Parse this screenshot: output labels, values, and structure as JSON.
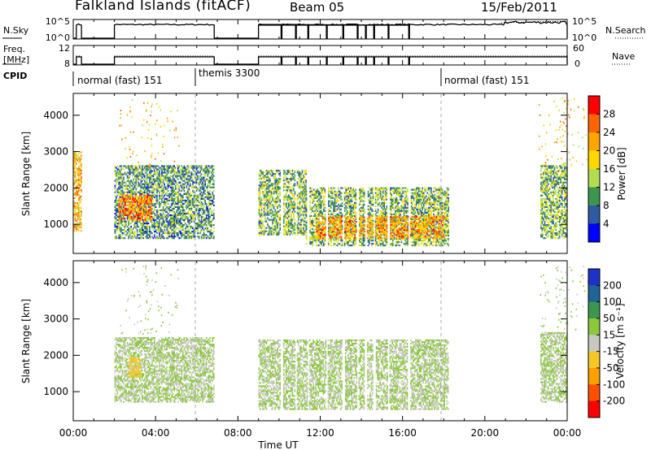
{
  "header": {
    "station": "Falkland Islands (fitACF)",
    "beam": "Beam 05",
    "date": "15/Feb/2011"
  },
  "noise_panel": {
    "left_label": "N.Sky",
    "left_ticks": [
      "10^5",
      "10^0"
    ],
    "right_label": "N.Search",
    "right_ticks": [
      "10^5",
      "10^0"
    ]
  },
  "freq_panel": {
    "left_label_line1": "Freq.",
    "left_label_line2": "[MHz]",
    "left_ticks": [
      "12",
      "8"
    ],
    "right_label": "Nave",
    "right_ticks": [
      "60",
      "0"
    ]
  },
  "cpid": {
    "label": "CPID",
    "segments": [
      {
        "text": "normal (fast) 151",
        "start_hour": 0.0
      },
      {
        "text": "themis 3300",
        "start_hour": 6.0
      },
      {
        "text": "normal (fast) 151",
        "start_hour": 18.0
      }
    ]
  },
  "power_panel": {
    "ylabel": "Slant Range [km]",
    "cbar_label": "Power [dB]",
    "cbar_ticks": [
      "28",
      "24",
      "20",
      "16",
      "12",
      "8",
      "4"
    ],
    "cbar_colors": [
      "#ff0000",
      "#ff6400",
      "#ffa500",
      "#ffd700",
      "#b4dc50",
      "#3c9650",
      "#2d5aa0",
      "#0000ff"
    ]
  },
  "velocity_panel": {
    "ylabel": "Slant Range [km]",
    "cbar_label": "Velocity [m s⁻¹]",
    "cbar_ticks": [
      "200",
      "100",
      "50",
      "15",
      "-15",
      "-50",
      "-100",
      "-200"
    ],
    "cbar_colors": [
      "#1e32c8",
      "#1e6496",
      "#3c9650",
      "#8cc83c",
      "#c8c8c0",
      "#f5c828",
      "#ffa000",
      "#ff5000",
      "#ff0000"
    ]
  },
  "x_axis": {
    "label": "Time UT",
    "ticks": [
      "00:00",
      "04:00",
      "08:00",
      "12:00",
      "16:00",
      "20:00",
      "00:00"
    ]
  },
  "y_axis": {
    "ticks": [
      "1000",
      "2000",
      "3000",
      "4000"
    ]
  },
  "chart_data": {
    "type": "heatmap",
    "title": "Falkland Islands (fitACF)",
    "xlabel": "Time UT",
    "ylabel": "Slant Range [km]",
    "xlim_hours": [
      0,
      24
    ],
    "ylim_km": [
      200,
      4600
    ],
    "noise_active_intervals_hours": [
      [
        0.15,
        0.4
      ],
      [
        2.0,
        6.85
      ],
      [
        9.0,
        24.0
      ]
    ],
    "noise_gaps_hours": [
      10.1,
      10.8,
      11.4,
      12.3,
      13.1,
      13.8,
      14.2,
      14.6,
      15.3,
      16.3
    ],
    "frequency_mhz": 10,
    "nave_typical": 30,
    "cpid_intervals": [
      {
        "name": "normal (fast) 151",
        "start": 0,
        "end": 6
      },
      {
        "name": "themis 3300",
        "start": 6,
        "end": 18
      },
      {
        "name": "normal (fast) 151",
        "start": 18,
        "end": 24
      }
    ],
    "power_echo_regions": [
      {
        "t": [
          0.0,
          0.4
        ],
        "r": [
          800,
          3000
        ],
        "power_db": 22
      },
      {
        "t": [
          2.0,
          6.8
        ],
        "r": [
          600,
          2600
        ],
        "power_db": 12
      },
      {
        "t": [
          2.2,
          3.8
        ],
        "r": [
          1100,
          1800
        ],
        "power_db": 26
      },
      {
        "t": [
          9.0,
          11.3
        ],
        "r": [
          700,
          2500
        ],
        "power_db": 14
      },
      {
        "t": [
          11.3,
          18.2
        ],
        "r": [
          400,
          2000
        ],
        "power_db": 14
      },
      {
        "t": [
          11.8,
          18.0
        ],
        "r": [
          600,
          1200
        ],
        "power_db": 24
      },
      {
        "t": [
          22.7,
          24.0
        ],
        "r": [
          600,
          2600
        ],
        "power_db": 14
      }
    ],
    "velocity_echo_regions": [
      {
        "t": [
          2.0,
          6.8
        ],
        "r": [
          700,
          2500
        ],
        "velocity_ms": 0
      },
      {
        "t": [
          2.7,
          3.3
        ],
        "r": [
          1400,
          1900
        ],
        "velocity_ms": -60
      },
      {
        "t": [
          9.0,
          18.2
        ],
        "r": [
          500,
          2400
        ],
        "velocity_ms": 0
      },
      {
        "t": [
          22.7,
          24.0
        ],
        "r": [
          700,
          2600
        ],
        "velocity_ms": 0
      }
    ]
  }
}
